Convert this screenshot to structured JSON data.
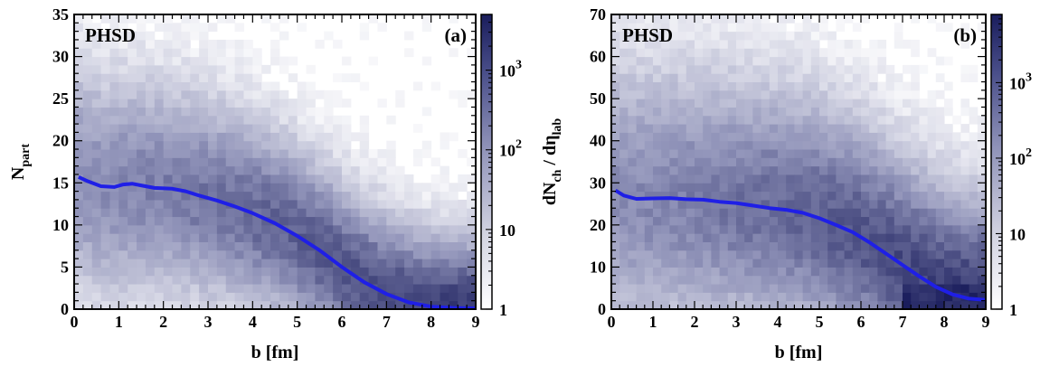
{
  "chart_data": [
    {
      "type": "heatmap",
      "panel_text": "PHSD",
      "panel_label": "(a)",
      "xlabel": "b [fm]",
      "ylabel_main": "N",
      "ylabel_sub": "part",
      "xlim": [
        0,
        9
      ],
      "ylim": [
        0,
        35
      ],
      "x_ticks": [
        0,
        1,
        2,
        3,
        4,
        5,
        6,
        7,
        8,
        9
      ],
      "y_ticks": [
        0,
        5,
        10,
        15,
        20,
        25,
        30,
        35
      ],
      "colorbar": {
        "scale": "log",
        "range": [
          1,
          5000
        ],
        "tick_labels": [
          {
            "value": 1,
            "base": "1",
            "exp": ""
          },
          {
            "value": 10,
            "base": "10",
            "exp": ""
          },
          {
            "value": 100,
            "base": "10",
            "exp": "2"
          },
          {
            "value": 1000,
            "base": "10",
            "exp": "3"
          }
        ],
        "color_low": "#ffffff",
        "color_high": "#1a1d5c"
      },
      "mean_curve": {
        "color": "#1f1fe6",
        "x": [
          0.1,
          0.3,
          0.6,
          0.9,
          1.1,
          1.3,
          1.5,
          1.8,
          2.2,
          2.5,
          2.8,
          3.2,
          3.6,
          4.0,
          4.5,
          5.0,
          5.5,
          6.0,
          6.5,
          7.0,
          7.5,
          8.0,
          8.5,
          9.0
        ],
        "y": [
          15.7,
          15.2,
          14.6,
          14.5,
          14.8,
          14.9,
          14.7,
          14.4,
          14.3,
          14.0,
          13.5,
          12.9,
          12.2,
          11.4,
          10.2,
          8.7,
          7.0,
          5.0,
          3.2,
          1.8,
          0.8,
          0.3,
          0.15,
          0.1
        ]
      }
    },
    {
      "type": "heatmap",
      "panel_text": "PHSD",
      "panel_label": "(b)",
      "xlabel": "b [fm]",
      "ylabel_main": "dN",
      "ylabel_sub": "ch",
      "ylabel_mid": " / d",
      "ylabel_greek": "η",
      "ylabel_sub2": "lab",
      "xlim": [
        0,
        9
      ],
      "ylim": [
        0,
        70
      ],
      "x_ticks": [
        0,
        1,
        2,
        3,
        4,
        5,
        6,
        7,
        8,
        9
      ],
      "y_ticks": [
        0,
        10,
        20,
        30,
        40,
        50,
        60,
        70
      ],
      "colorbar": {
        "scale": "log",
        "range": [
          1,
          8000
        ],
        "tick_labels": [
          {
            "value": 1,
            "base": "1",
            "exp": ""
          },
          {
            "value": 10,
            "base": "10",
            "exp": ""
          },
          {
            "value": 100,
            "base": "10",
            "exp": "2"
          },
          {
            "value": 1000,
            "base": "10",
            "exp": "3"
          }
        ],
        "color_low": "#ffffff",
        "color_high": "#1a1d5c"
      },
      "mean_curve": {
        "color": "#1f1fe6",
        "x": [
          0.1,
          0.3,
          0.6,
          1.0,
          1.4,
          1.8,
          2.2,
          2.6,
          3.0,
          3.4,
          3.8,
          4.2,
          4.6,
          5.0,
          5.4,
          5.8,
          6.2,
          6.6,
          7.0,
          7.4,
          7.8,
          8.2,
          8.6,
          9.0
        ],
        "y": [
          28.2,
          27.0,
          26.2,
          26.3,
          26.4,
          26.1,
          26.0,
          25.5,
          25.2,
          24.6,
          24.0,
          23.6,
          22.9,
          21.6,
          20.0,
          18.3,
          15.9,
          13.2,
          10.5,
          7.8,
          5.3,
          3.5,
          2.5,
          2.2
        ]
      }
    }
  ]
}
